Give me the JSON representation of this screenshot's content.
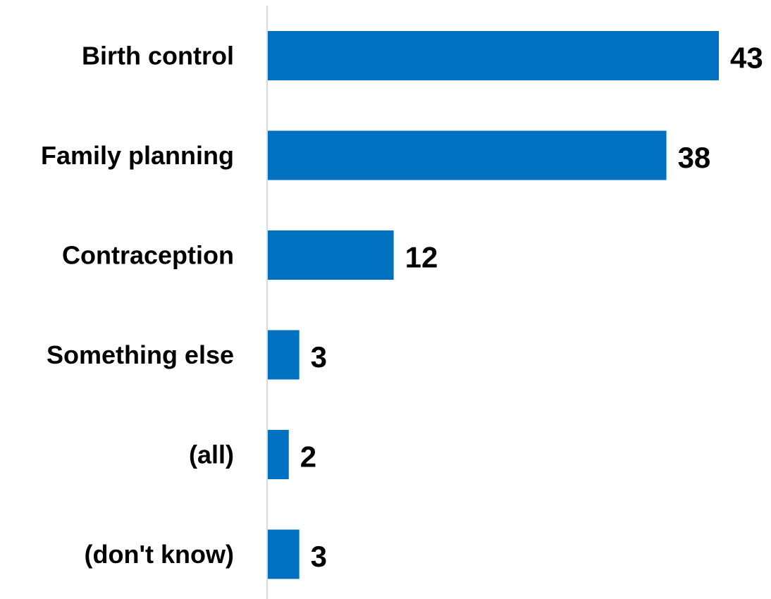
{
  "chart_data": {
    "type": "bar",
    "orientation": "horizontal",
    "categories": [
      "Birth control",
      "Family planning",
      "Contraception",
      "Something else",
      "(all)",
      "(don't know)"
    ],
    "values": [
      43,
      38,
      12,
      3,
      2,
      3
    ],
    "data_labels": [
      "43",
      "38",
      "12",
      "3",
      "2",
      "3"
    ],
    "title": "",
    "xlabel": "",
    "ylabel": "",
    "xlim": [
      0,
      43
    ],
    "bar_color": "#0070C0",
    "axis_color": "#D9D9D9",
    "grid": false,
    "legend": "none"
  }
}
